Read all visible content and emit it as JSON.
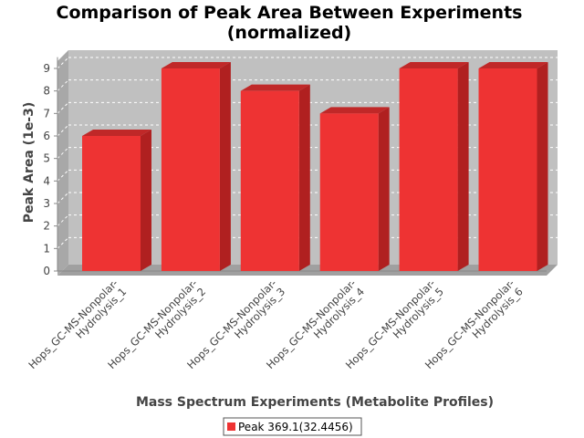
{
  "chart_data": {
    "type": "bar",
    "title": "Comparison of Peak Area Between Experiments",
    "subtitle": "(normalized)",
    "xlabel": "Mass Spectrum Experiments (Metabolite Profiles)",
    "ylabel": "Peak Area (1e-3)",
    "ylim": [
      0,
      9.5
    ],
    "yticks": [
      "0",
      "1",
      "2",
      "3",
      "4",
      "5",
      "6",
      "7",
      "8",
      "9"
    ],
    "categories": [
      [
        "Hops_GC-MS-Nonpolar-",
        "Hydrolysis_1"
      ],
      [
        "Hops_GC-MS-Nonpolar-",
        "Hydrolysis_2"
      ],
      [
        "Hops_GC-MS-Nonpolar-",
        "Hydrolysis_3"
      ],
      [
        "Hops_GC-MS-Nonpolar-",
        "Hydrolysis_4"
      ],
      [
        "Hops_GC-MS-Nonpolar-",
        "Hydrolysis_5"
      ],
      [
        "Hops_GC-MS-Nonpolar-",
        "Hydrolysis_6"
      ]
    ],
    "series": [
      {
        "name": "Peak 369.1(32.4456)",
        "values": [
          6,
          9,
          8,
          7,
          9,
          9
        ],
        "color": "#ee3333"
      }
    ],
    "grid": true,
    "legend": "bottom-center",
    "plot_background": "#c0c0c0"
  }
}
